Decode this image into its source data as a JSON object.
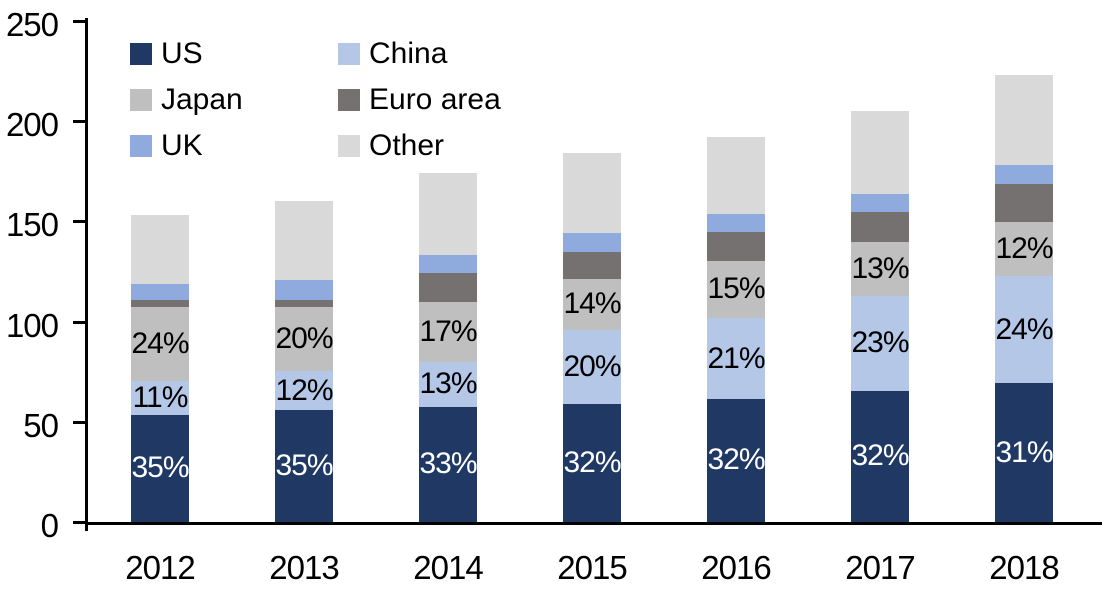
{
  "chart_data": {
    "type": "bar",
    "stacked": true,
    "title": "",
    "xlabel": "",
    "ylabel": "",
    "categories": [
      "2012",
      "2013",
      "2014",
      "2015",
      "2016",
      "2017",
      "2018"
    ],
    "ylim": [
      0,
      250
    ],
    "yticks": [
      0,
      50,
      100,
      150,
      200,
      250
    ],
    "grid": false,
    "legend_position": "top-left-inside",
    "legend_columns": 2,
    "totals": [
      153,
      160,
      174,
      184,
      192,
      205,
      223
    ],
    "series": [
      {
        "name": "US",
        "color": "#1F3864",
        "label_color": "#FFFFFF",
        "values": [
          53.6,
          56.0,
          57.4,
          58.9,
          61.4,
          65.6,
          69.2
        ],
        "labels": [
          "35%",
          "35%",
          "33%",
          "32%",
          "32%",
          "32%",
          "31%"
        ]
      },
      {
        "name": "China",
        "color": "#B4C7E7",
        "label_color": "#000000",
        "values": [
          16.8,
          19.2,
          22.6,
          36.8,
          40.3,
          47.2,
          53.5
        ],
        "labels": [
          "11%",
          "12%",
          "13%",
          "20%",
          "21%",
          "23%",
          "24%"
        ]
      },
      {
        "name": "Japan",
        "color": "#BFBFBF",
        "label_color": "#000000",
        "values": [
          36.7,
          32.0,
          29.6,
          25.8,
          28.8,
          26.7,
          26.8
        ],
        "labels": [
          "24%",
          "20%",
          "17%",
          "14%",
          "15%",
          "13%",
          "12%"
        ]
      },
      {
        "name": "Euro area",
        "color": "#757171",
        "label_color": "#000000",
        "values": [
          3.7,
          3.8,
          14.9,
          13.2,
          14.2,
          15.4,
          19.4
        ],
        "labels": [
          "",
          "",
          "",
          "",
          "",
          "",
          ""
        ]
      },
      {
        "name": "UK",
        "color": "#8FAADC",
        "label_color": "#000000",
        "values": [
          8.0,
          9.9,
          8.8,
          9.4,
          9.1,
          8.8,
          9.1
        ],
        "labels": [
          "",
          "",
          "",
          "",
          "",
          "",
          ""
        ]
      },
      {
        "name": "Other",
        "color": "#D9D9D9",
        "label_color": "#000000",
        "values": [
          34.2,
          39.1,
          40.7,
          39.9,
          38.2,
          41.3,
          45.0
        ],
        "labels": [
          "",
          "",
          "",
          "",
          "",
          "",
          ""
        ]
      }
    ],
    "axis_color": "#000000",
    "background_color": "#FFFFFF"
  }
}
